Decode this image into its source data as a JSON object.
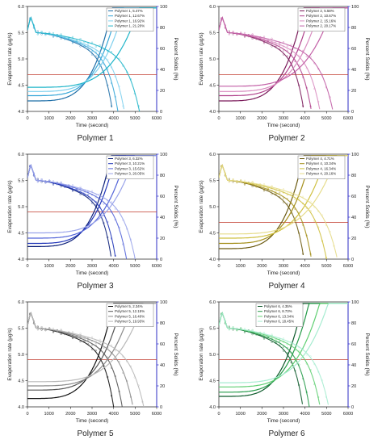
{
  "chart_data": [
    {
      "type": "line",
      "caption": "Polymer 1",
      "xlabel": "Time (second)",
      "ylabel_left": "Evaporation rate (µg/s)",
      "ylabel_right": "Percent Solids (%)",
      "xlim": [
        0,
        6000
      ],
      "ylim_left": [
        4.0,
        6.0
      ],
      "ylim_right": [
        0,
        100
      ],
      "x_ticks": [
        "0",
        "1000",
        "2000",
        "3000",
        "4000",
        "5000",
        "6000"
      ],
      "y_ticks_left": [
        "4.0",
        "4.5",
        "5.0",
        "5.5",
        "6.0"
      ],
      "y_ticks_right": [
        "0",
        "20",
        "40",
        "60",
        "80",
        "100"
      ],
      "reference_line_left": 4.7,
      "legend_position": "top-right",
      "colors": [
        "#1f6fa8",
        "#36a6d8",
        "#7fd0ee",
        "#1fb5c9"
      ],
      "series": [
        {
          "name": "Polymer 1, 5.47%",
          "end_time": 3950,
          "solids_start": 10
        },
        {
          "name": "Polymer 1, 12.67%",
          "end_time": 4200,
          "solids_start": 15
        },
        {
          "name": "Polymer 1, 16.92%",
          "end_time": 4500,
          "solids_start": 19
        },
        {
          "name": "Polymer 1, 21.20%",
          "end_time": 5200,
          "solids_start": 23
        }
      ]
    },
    {
      "type": "line",
      "caption": "Polymer 2",
      "xlabel": "Time (second)",
      "ylabel_left": "Evaporation rate (µg/s)",
      "ylabel_right": "Percent Solids (%)",
      "xlim": [
        0,
        6000
      ],
      "ylim_left": [
        4.0,
        6.0
      ],
      "ylim_right": [
        0,
        100
      ],
      "x_ticks": [
        "0",
        "1000",
        "2000",
        "3000",
        "4000",
        "5000",
        "6000"
      ],
      "y_ticks_left": [
        "4.0",
        "4.5",
        "5.0",
        "5.5",
        "6.0"
      ],
      "y_ticks_right": [
        "0",
        "20",
        "40",
        "60",
        "80",
        "100"
      ],
      "reference_line_left": 4.7,
      "legend_position": "top-right",
      "colors": [
        "#7a1a5a",
        "#b0428c",
        "#d98cc0",
        "#c25fa6"
      ],
      "series": [
        {
          "name": "Polymer 2, 5.58%",
          "end_time": 3950,
          "solids_start": 10
        },
        {
          "name": "Polymer 2, 10.67%",
          "end_time": 4300,
          "solids_start": 15
        },
        {
          "name": "Polymer 2, 15.16%",
          "end_time": 4700,
          "solids_start": 19
        },
        {
          "name": "Polymer 2, 20.17%",
          "end_time": 5300,
          "solids_start": 24
        }
      ]
    },
    {
      "type": "line",
      "caption": "Polymer 3",
      "xlabel": "Time (second)",
      "ylabel_left": "Evaporation rate (µg/s)",
      "ylabel_right": "Percent Solids (%)",
      "xlim": [
        0,
        6000
      ],
      "ylim_left": [
        4.0,
        6.0
      ],
      "ylim_right": [
        0,
        100
      ],
      "x_ticks": [
        "0",
        "1000",
        "2000",
        "3000",
        "4000",
        "5000",
        "6000"
      ],
      "y_ticks_left": [
        "4.0",
        "4.5",
        "5.0",
        "5.5",
        "6.0"
      ],
      "y_ticks_right": [
        "0",
        "20",
        "40",
        "60",
        "80",
        "100"
      ],
      "reference_line_left": 4.9,
      "legend_position": "top-right",
      "colors": [
        "#0b1f7a",
        "#2035b8",
        "#5566d9",
        "#9aa4ea"
      ],
      "series": [
        {
          "name": "Polymer 3, 6.32%",
          "end_time": 3900,
          "solids_start": 12
        },
        {
          "name": "Polymer 3, 10.21%",
          "end_time": 4100,
          "solids_start": 15
        },
        {
          "name": "Polymer 3, 15.62%",
          "end_time": 4600,
          "solids_start": 20
        },
        {
          "name": "Polymer 3, 20.05%",
          "end_time": 5000,
          "solids_start": 25
        }
      ]
    },
    {
      "type": "line",
      "caption": "Polymer 4",
      "xlabel": "Time (second)",
      "ylabel_left": "Evaporation rate (µg/s)",
      "ylabel_right": "Percent Solids (%)",
      "xlim": [
        0,
        6000
      ],
      "ylim_left": [
        4.0,
        6.0
      ],
      "ylim_right": [
        0,
        100
      ],
      "x_ticks": [
        "0",
        "1000",
        "2000",
        "3000",
        "4000",
        "5000",
        "6000"
      ],
      "y_ticks_left": [
        "4.0",
        "4.5",
        "5.0",
        "5.5",
        "6.0"
      ],
      "y_ticks_right": [
        "0",
        "20",
        "40",
        "60",
        "80",
        "100"
      ],
      "reference_line_left": 4.7,
      "legend_position": "top-right",
      "colors": [
        "#6b5a10",
        "#a48f1a",
        "#cfc040",
        "#e6dc8a"
      ],
      "series": [
        {
          "name": "Polymer 4, 4.71%",
          "end_time": 3950,
          "solids_start": 10
        },
        {
          "name": "Polymer 4, 10.34%",
          "end_time": 4300,
          "solids_start": 15
        },
        {
          "name": "Polymer 4, 16.34%",
          "end_time": 5000,
          "solids_start": 20
        },
        {
          "name": "Polymer 4, 20.16%",
          "end_time": 5500,
          "solids_start": 24
        }
      ]
    },
    {
      "type": "line",
      "caption": "Polymer 5",
      "xlabel": "Time (second)",
      "ylabel_left": "Evaporation rate (µg/s)",
      "ylabel_right": "Percent Solids (%)",
      "xlim": [
        0,
        6000
      ],
      "ylim_left": [
        4.0,
        6.0
      ],
      "ylim_right": [
        0,
        100
      ],
      "x_ticks": [
        "0",
        "1000",
        "2000",
        "3000",
        "4000",
        "5000",
        "6000"
      ],
      "y_ticks_left": [
        "4.0",
        "4.5",
        "5.0",
        "5.5",
        "6.0"
      ],
      "y_ticks_right": [
        "0",
        "20",
        "40",
        "60",
        "80",
        "100"
      ],
      "reference_line_left": 4.9,
      "legend_position": "top-right",
      "colors": [
        "#111111",
        "#555555",
        "#8a8a8a",
        "#b8b8b8"
      ],
      "series": [
        {
          "name": "Polymer 5, 2.34%",
          "end_time": 4000,
          "solids_start": 8
        },
        {
          "name": "Polymer 5, 12.15%",
          "end_time": 4400,
          "solids_start": 16
        },
        {
          "name": "Polymer 5, 16.40%",
          "end_time": 4900,
          "solids_start": 20
        },
        {
          "name": "Polymer 5, 19.93%",
          "end_time": 5400,
          "solids_start": 24
        }
      ]
    },
    {
      "type": "line",
      "caption": "Polymer 6",
      "xlabel": "Time (second)",
      "ylabel_left": "Evaporation rate (µg/s)",
      "ylabel_right": "Percent Solids (%)",
      "xlim": [
        0,
        6000
      ],
      "ylim_left": [
        4.0,
        6.0
      ],
      "ylim_right": [
        0,
        100
      ],
      "x_ticks": [
        "0",
        "1000",
        "2000",
        "3000",
        "4000",
        "5000",
        "6000"
      ],
      "y_ticks_left": [
        "4.0",
        "4.5",
        "5.0",
        "5.5",
        "6.0"
      ],
      "y_ticks_right": [
        "0",
        "20",
        "40",
        "60",
        "80",
        "100"
      ],
      "reference_line_left": 4.9,
      "legend_position": "top-left",
      "colors": [
        "#0c5a2a",
        "#249a48",
        "#5fcf72",
        "#a6ecd0"
      ],
      "series": [
        {
          "name": "Polymer 6, 4.35%",
          "end_time": 3900,
          "solids_start": 10
        },
        {
          "name": "Polymer 6, 8.73%",
          "end_time": 4200,
          "solids_start": 14
        },
        {
          "name": "Polymer 6, 13.34%",
          "end_time": 4700,
          "solids_start": 19
        },
        {
          "name": "Polymer 6, 18.45%",
          "end_time": 5100,
          "solids_start": 23
        }
      ]
    }
  ]
}
